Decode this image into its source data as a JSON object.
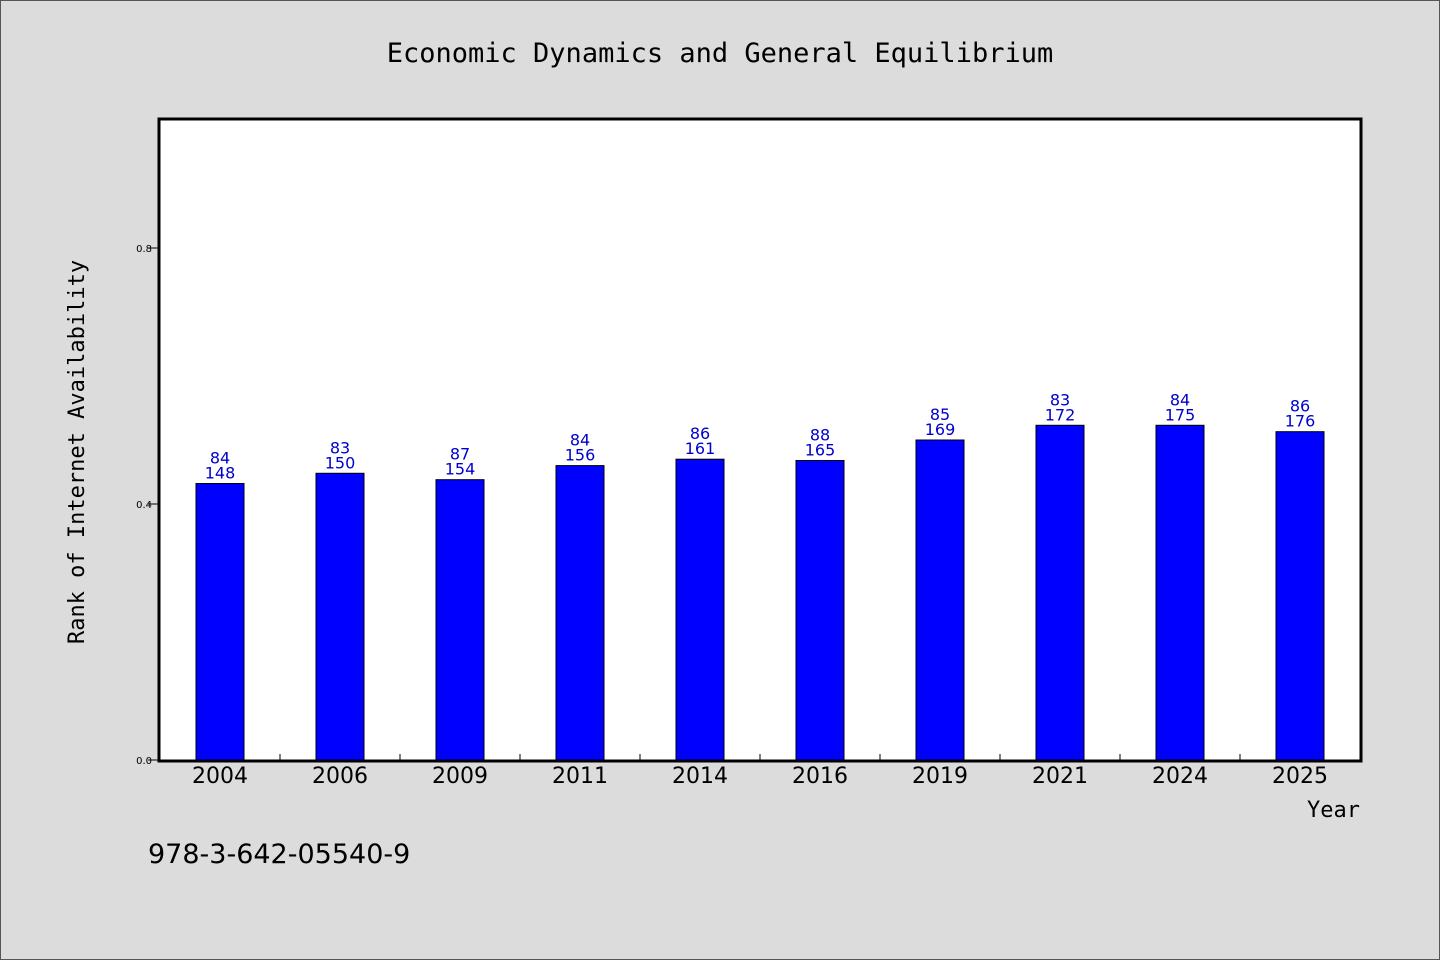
{
  "chart_data": {
    "type": "bar",
    "title": "Economic Dynamics and General Equilibrium",
    "xlabel": "Year",
    "ylabel": "Rank of Internet Availability",
    "ylim": [
      0,
      1.0
    ],
    "yticks": [
      "0.0",
      "0.4",
      "0.8"
    ],
    "grid": false,
    "categories": [
      "2004",
      "2006",
      "2009",
      "2011",
      "2014",
      "2016",
      "2019",
      "2021",
      "2024",
      "2025"
    ],
    "values": [
      0.432,
      0.448,
      0.438,
      0.46,
      0.47,
      0.468,
      0.5,
      0.523,
      0.523,
      0.513
    ],
    "label_top": [
      "84",
      "83",
      "87",
      "84",
      "86",
      "88",
      "85",
      "83",
      "84",
      "86"
    ],
    "label_bottom": [
      "148",
      "150",
      "154",
      "156",
      "161",
      "165",
      "169",
      "172",
      "175",
      "176"
    ],
    "bar_color": "#0000ff",
    "label_color": "#0000cc"
  },
  "footnote": "978-3-642-05540-9"
}
